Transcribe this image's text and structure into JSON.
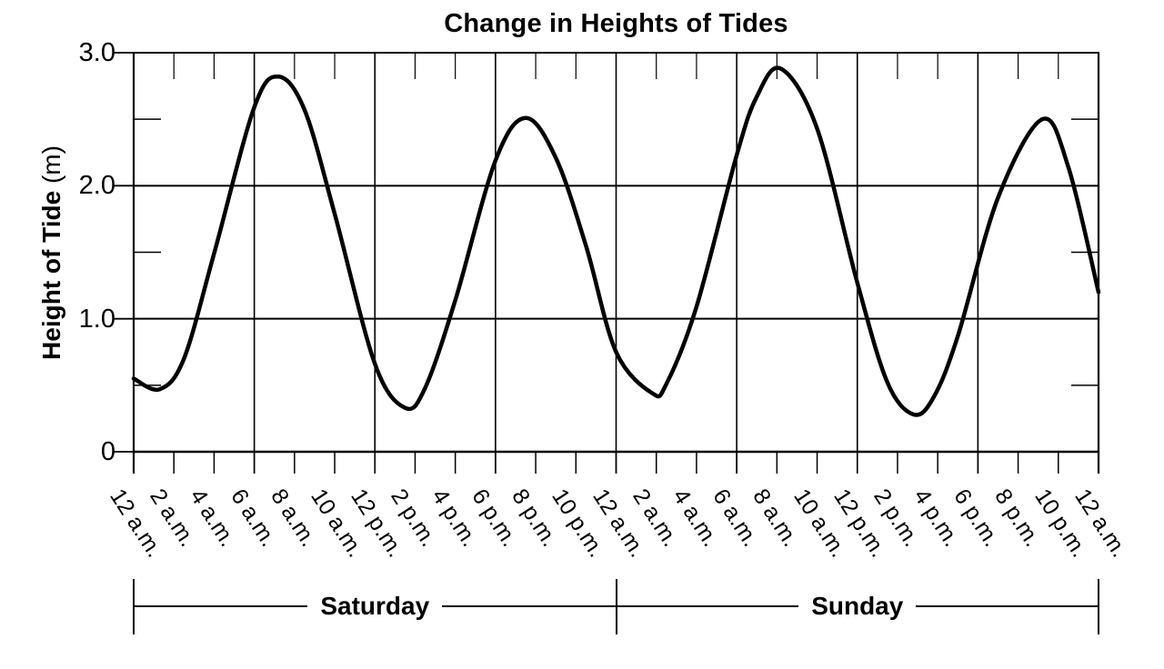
{
  "title": "Change in Heights of Tides",
  "colors": {
    "line": "#000000",
    "background": "#ffffff"
  },
  "y_axis": {
    "title_main": "Height of Tide",
    "title_unit": " (m)",
    "tick_labels": [
      "3.0",
      "2.0",
      "1.0",
      "0"
    ],
    "tick_values": [
      3.0,
      2.0,
      1.0,
      0
    ],
    "minor_tick_values": [
      2.5,
      1.5,
      0.5
    ]
  },
  "x_axis": {
    "tick_interval_hours": 2,
    "tick_labels": [
      "12 a.m.",
      "2 a.m.",
      "4 a.m.",
      "6 a.m.",
      "8 a.m.",
      "10 a.m.",
      "12 p.m.",
      "2 p.m.",
      "4 p.m.",
      "6 p.m.",
      "8 p.m.",
      "10 p.m.",
      "12 a.m.",
      "2 a.m.",
      "4 a.m.",
      "6 a.m.",
      "8 a.m.",
      "10 a.m.",
      "12 p.m.",
      "2 p.m.",
      "4 p.m.",
      "6 p.m.",
      "8 p.m.",
      "10 p.m.",
      "12 a.m."
    ],
    "major_gridline_hours": [
      0,
      6,
      12,
      18,
      24,
      30,
      36,
      42,
      48
    ]
  },
  "day_labels": [
    "Saturday",
    "Sunday"
  ],
  "chart_data": {
    "type": "line",
    "title": "Change in Heights of Tides",
    "ylabel": "Height of Tide (m)",
    "ylim": [
      0,
      3.0
    ],
    "x_tick_labels": [
      "12 a.m.",
      "2 a.m.",
      "4 a.m.",
      "6 a.m.",
      "8 a.m.",
      "10 a.m.",
      "12 p.m.",
      "2 p.m.",
      "4 p.m.",
      "6 p.m.",
      "8 p.m.",
      "10 p.m.",
      "12 a.m.",
      "2 a.m.",
      "4 a.m.",
      "6 a.m.",
      "8 a.m.",
      "10 a.m.",
      "12 p.m.",
      "2 p.m.",
      "4 p.m.",
      "6 p.m.",
      "8 p.m.",
      "10 p.m.",
      "12 a.m."
    ],
    "x_hours": [
      0,
      1.3,
      2.5,
      4,
      6,
      7.2,
      8.5,
      10,
      12,
      13.5,
      14.5,
      16,
      18,
      19.5,
      21,
      22.5,
      24,
      25.8,
      26.5,
      28,
      30,
      31,
      32.2,
      34,
      36,
      37.5,
      38.8,
      39.8,
      41,
      43,
      45.2,
      46.5,
      48
    ],
    "heights_m": [
      0.55,
      0.47,
      0.7,
      1.49,
      2.59,
      2.82,
      2.57,
      1.79,
      0.66,
      0.33,
      0.48,
      1.14,
      2.19,
      2.51,
      2.21,
      1.55,
      0.75,
      0.44,
      0.51,
      1.09,
      2.23,
      2.67,
      2.88,
      2.43,
      1.27,
      0.52,
      0.28,
      0.41,
      0.87,
      1.91,
      2.5,
      2.14,
      1.2
    ],
    "key_extremes": [
      {
        "day": "Saturday",
        "time": "1 a.m.",
        "height_m": 0.47,
        "type": "low"
      },
      {
        "day": "Saturday",
        "time": "7 a.m.",
        "height_m": 2.82,
        "type": "high"
      },
      {
        "day": "Saturday",
        "time": "1:30 p.m.",
        "height_m": 0.33,
        "type": "low"
      },
      {
        "day": "Saturday",
        "time": "7:30 p.m.",
        "height_m": 2.51,
        "type": "high"
      },
      {
        "day": "Sunday",
        "time": "2 a.m.",
        "height_m": 0.44,
        "type": "low"
      },
      {
        "day": "Sunday",
        "time": "8 a.m.",
        "height_m": 2.88,
        "type": "high"
      },
      {
        "day": "Sunday",
        "time": "2:30 p.m.",
        "height_m": 0.28,
        "type": "low"
      },
      {
        "day": "Sunday",
        "time": "9 p.m.",
        "height_m": 2.5,
        "type": "high"
      }
    ]
  }
}
